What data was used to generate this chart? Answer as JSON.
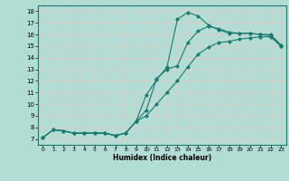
{
  "xlabel": "Humidex (Indice chaleur)",
  "bg_color": "#b2ddd4",
  "grid_color": "#d4eeea",
  "line_color": "#1a7a6e",
  "xlim": [
    -0.5,
    23.5
  ],
  "ylim": [
    6.5,
    18.5
  ],
  "xticks": [
    0,
    1,
    2,
    3,
    4,
    5,
    6,
    7,
    8,
    9,
    10,
    11,
    12,
    13,
    14,
    15,
    16,
    17,
    18,
    19,
    20,
    21,
    22,
    23
  ],
  "yticks": [
    7,
    8,
    9,
    10,
    11,
    12,
    13,
    14,
    15,
    16,
    17,
    18
  ],
  "series1_x": [
    0,
    1,
    2,
    3,
    4,
    5,
    6,
    7,
    8,
    9,
    10,
    11,
    12,
    13,
    14,
    15,
    16,
    17,
    18,
    19,
    20,
    21,
    22,
    23
  ],
  "series1_y": [
    7.1,
    7.8,
    7.7,
    7.5,
    7.5,
    7.5,
    7.5,
    7.3,
    7.5,
    8.5,
    10.8,
    12.1,
    13.2,
    17.3,
    17.9,
    17.6,
    16.8,
    16.4,
    16.1,
    16.1,
    16.1,
    16.0,
    15.9,
    15.0
  ],
  "series2_x": [
    0,
    1,
    2,
    3,
    4,
    5,
    6,
    7,
    8,
    9,
    10,
    11,
    12,
    13,
    14,
    15,
    16,
    17,
    18,
    19,
    20,
    21,
    22,
    23
  ],
  "series2_y": [
    7.1,
    7.8,
    7.7,
    7.5,
    7.5,
    7.5,
    7.5,
    7.3,
    7.5,
    8.5,
    9.5,
    12.2,
    13.0,
    13.3,
    15.3,
    16.3,
    16.7,
    16.5,
    16.2,
    16.1,
    16.1,
    16.0,
    16.0,
    15.1
  ],
  "series3_x": [
    0,
    1,
    2,
    3,
    4,
    5,
    6,
    7,
    8,
    9,
    10,
    11,
    12,
    13,
    14,
    15,
    16,
    17,
    18,
    19,
    20,
    21,
    22,
    23
  ],
  "series3_y": [
    7.1,
    7.8,
    7.7,
    7.5,
    7.5,
    7.5,
    7.5,
    7.3,
    7.5,
    8.5,
    9.0,
    10.0,
    11.0,
    12.0,
    13.2,
    14.3,
    14.9,
    15.3,
    15.4,
    15.6,
    15.7,
    15.8,
    15.8,
    15.0
  ]
}
